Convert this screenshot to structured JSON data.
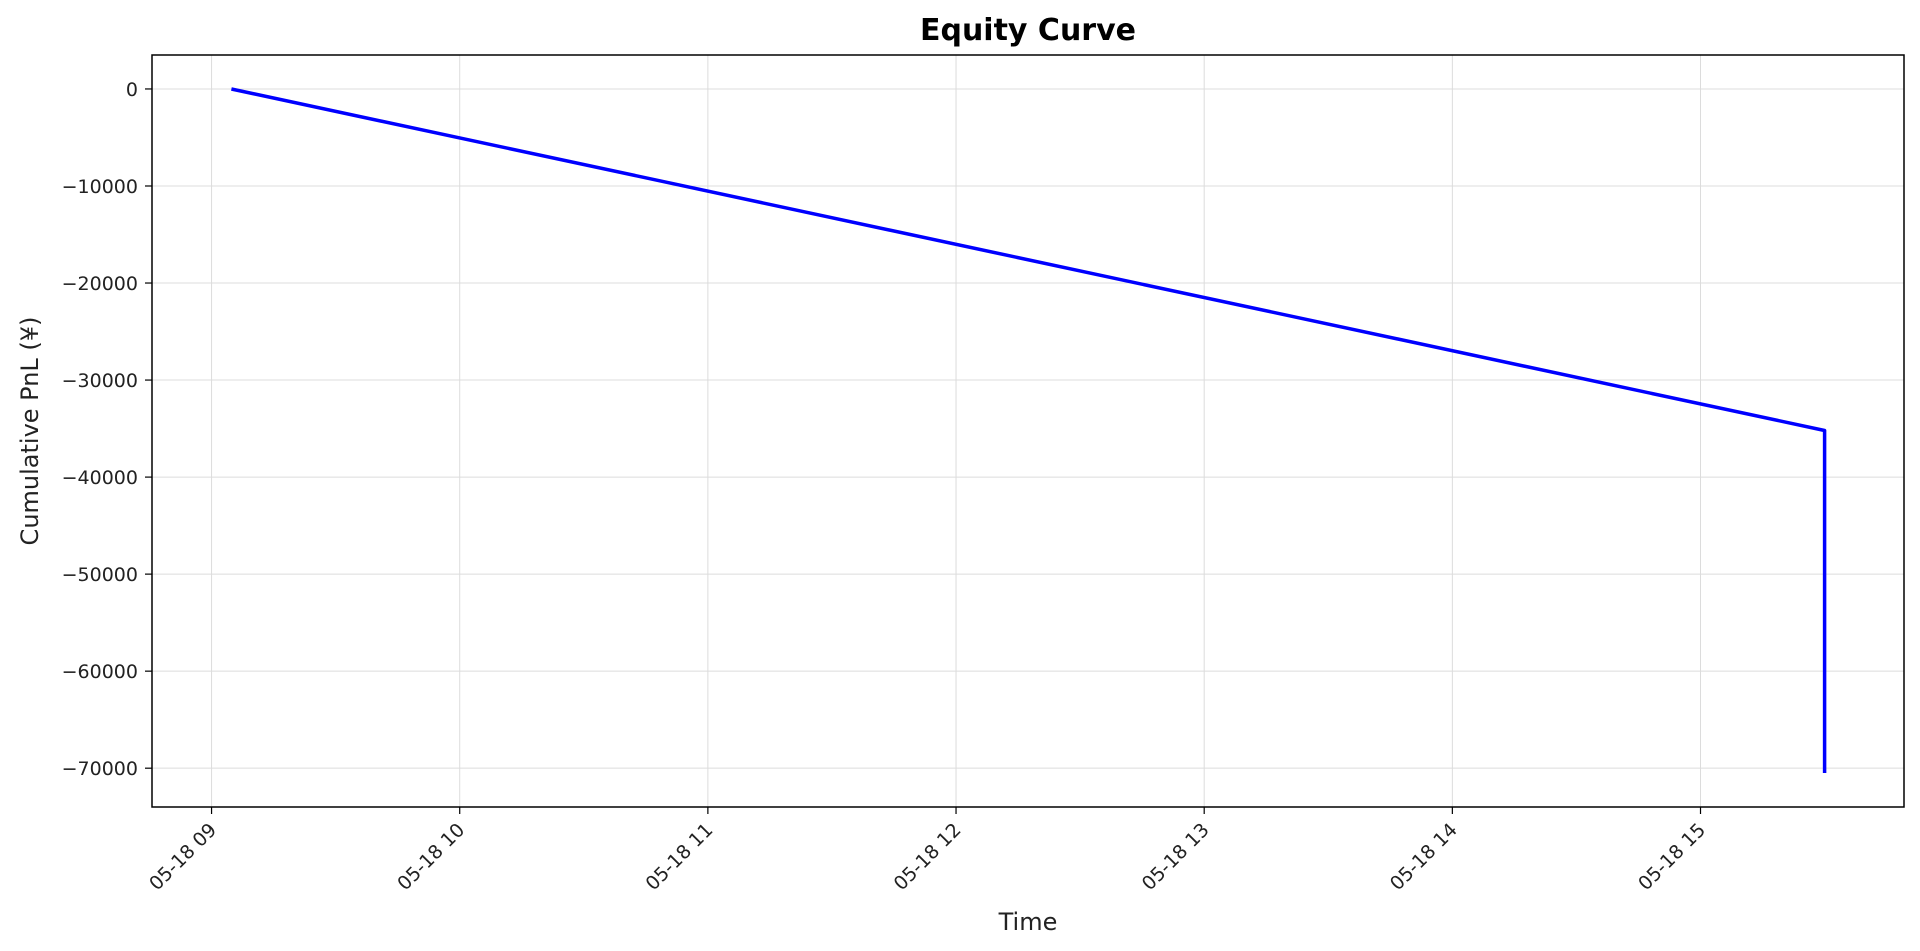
{
  "chart_data": {
    "type": "line",
    "title": "Equity Curve",
    "xlabel": "Time",
    "ylabel": "Cumulative PnL (¥)",
    "x_ticks": [
      "05-18 09",
      "05-18 10",
      "05-18 11",
      "05-18 12",
      "05-18 13",
      "05-18 14",
      "05-18 15"
    ],
    "x_tick_hours": [
      9,
      10,
      11,
      12,
      13,
      14,
      15
    ],
    "xlim_hours": [
      8.76,
      15.82
    ],
    "ylim": [
      -74000,
      3500
    ],
    "y_ticks": [
      0,
      -10000,
      -20000,
      -30000,
      -40000,
      -50000,
      -60000,
      -70000
    ],
    "y_tick_labels": [
      "0",
      "−10000",
      "−20000",
      "−30000",
      "−40000",
      "−50000",
      "−60000",
      "−70000"
    ],
    "grid": true,
    "series": [
      {
        "color": "#0000ff",
        "x_hours": [
          9.08,
          15.5,
          15.5
        ],
        "y": [
          0,
          -35200,
          -70500
        ]
      }
    ]
  }
}
